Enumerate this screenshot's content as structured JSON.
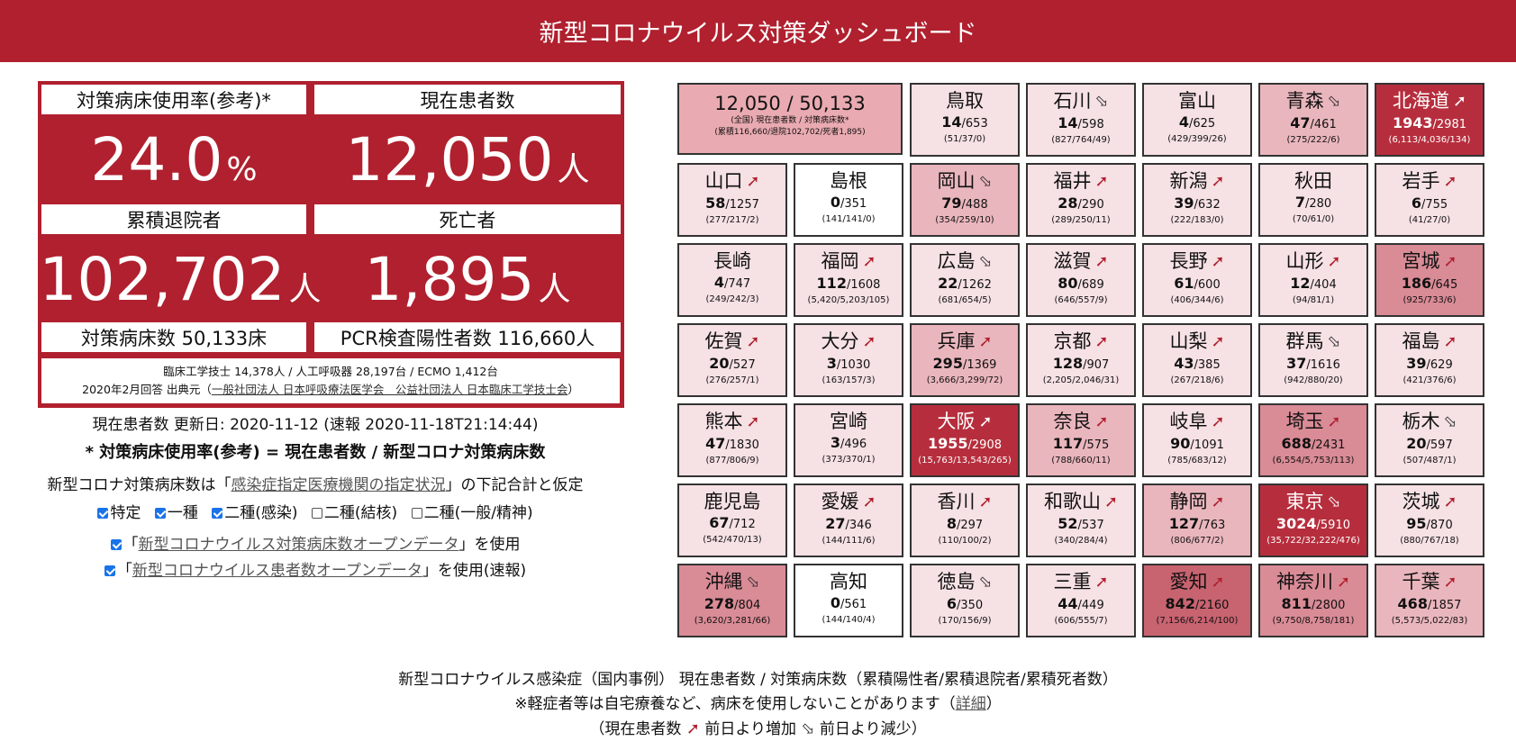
{
  "header": {
    "title": "新型コロナウイルス対策ダッシュボード"
  },
  "stats": {
    "bed_rate_label": "対策病床使用率(参考)*",
    "bed_rate_value": "24.0",
    "bed_rate_unit": "%",
    "current_label": "現在患者数",
    "current_value": "12,050",
    "current_unit": "人",
    "discharged_label": "累積退院者",
    "discharged_value": "102,702",
    "discharged_unit": "人",
    "deaths_label": "死亡者",
    "deaths_value": "1,895",
    "deaths_unit": "人",
    "beds_label": "対策病床数 50,133床",
    "pcr_label": "PCR検査陽性者数 116,660人",
    "equipment_line": "臨床工学技士 14,378人 / 人工呼吸器 28,197台 / ECMO 1,412台",
    "source_prefix": "2020年2月回答 出典元（",
    "source_link": "一般社団法人 日本呼吸療法医学会　公益社団法人 日本臨床工学技士会",
    "source_suffix": "）"
  },
  "below": {
    "updated": "現在患者数 更新日: 2020-11-12 (速報 2020-11-18T21:14:44)",
    "formula": "* 対策病床使用率(参考) = 現在患者数 / 新型コロナ対策病床数",
    "note_prefix": "新型コロナ対策病床数は「",
    "note_link": "感染症指定医療機関の指定状況",
    "note_suffix": "」の下記合計と仮定",
    "options": [
      {
        "label": "特定",
        "checked": true
      },
      {
        "label": "一種",
        "checked": true
      },
      {
        "label": "二種(感染)",
        "checked": true
      },
      {
        "label": "二種(結核)",
        "checked": false
      },
      {
        "label": "二種(一般/精神)",
        "checked": false
      }
    ],
    "use1_prefix": "「",
    "use1_link": "新型コロナウイルス対策病床数オープンデータ",
    "use1_suffix": "」を使用",
    "use2_prefix": "「",
    "use2_link": "新型コロナウイルス患者数オープンデータ",
    "use2_suffix": "」を使用(速報)"
  },
  "summary": {
    "value": "12,050 / 50,133",
    "line1": "(全国) 現在患者数 / 対策病床数*",
    "line2": "(累積116,660/退院102,702/死者1,895)"
  },
  "colors": {
    "brand": "#b0202e",
    "up_arrow": "#b0202e"
  },
  "prefectures": [
    {
      "name": "鳥取",
      "current": "14",
      "beds": "653",
      "detail": "(51/37/0)",
      "trend": "",
      "level": 1
    },
    {
      "name": "石川",
      "current": "14",
      "beds": "598",
      "detail": "(827/764/49)",
      "trend": "down",
      "level": 1
    },
    {
      "name": "富山",
      "current": "4",
      "beds": "625",
      "detail": "(429/399/26)",
      "trend": "",
      "level": 1
    },
    {
      "name": "青森",
      "current": "47",
      "beds": "461",
      "detail": "(275/222/6)",
      "trend": "down",
      "level": 2
    },
    {
      "name": "北海道",
      "current": "1943",
      "beds": "2981",
      "detail": "(6,113/4,036/134)",
      "trend": "up",
      "level": 5
    },
    {
      "name": "山口",
      "current": "58",
      "beds": "1257",
      "detail": "(277/217/2)",
      "trend": "up",
      "level": 1
    },
    {
      "name": "島根",
      "current": "0",
      "beds": "351",
      "detail": "(141/141/0)",
      "trend": "",
      "level": 0
    },
    {
      "name": "岡山",
      "current": "79",
      "beds": "488",
      "detail": "(354/259/10)",
      "trend": "down",
      "level": 2
    },
    {
      "name": "福井",
      "current": "28",
      "beds": "290",
      "detail": "(289/250/11)",
      "trend": "up",
      "level": 1
    },
    {
      "name": "新潟",
      "current": "39",
      "beds": "632",
      "detail": "(222/183/0)",
      "trend": "up",
      "level": 1
    },
    {
      "name": "秋田",
      "current": "7",
      "beds": "280",
      "detail": "(70/61/0)",
      "trend": "",
      "level": 1
    },
    {
      "name": "岩手",
      "current": "6",
      "beds": "755",
      "detail": "(41/27/0)",
      "trend": "up",
      "level": 1
    },
    {
      "name": "長崎",
      "current": "4",
      "beds": "747",
      "detail": "(249/242/3)",
      "trend": "",
      "level": 1
    },
    {
      "name": "福岡",
      "current": "112",
      "beds": "1608",
      "detail": "(5,420/5,203/105)",
      "trend": "up",
      "level": 1
    },
    {
      "name": "広島",
      "current": "22",
      "beds": "1262",
      "detail": "(681/654/5)",
      "trend": "down",
      "level": 1
    },
    {
      "name": "滋賀",
      "current": "80",
      "beds": "689",
      "detail": "(646/557/9)",
      "trend": "up",
      "level": 1
    },
    {
      "name": "長野",
      "current": "61",
      "beds": "600",
      "detail": "(406/344/6)",
      "trend": "up",
      "level": 1
    },
    {
      "name": "山形",
      "current": "12",
      "beds": "404",
      "detail": "(94/81/1)",
      "trend": "up",
      "level": 1
    },
    {
      "name": "宮城",
      "current": "186",
      "beds": "645",
      "detail": "(925/733/6)",
      "trend": "up",
      "level": 3
    },
    {
      "name": "佐賀",
      "current": "20",
      "beds": "527",
      "detail": "(276/257/1)",
      "trend": "up",
      "level": 1
    },
    {
      "name": "大分",
      "current": "3",
      "beds": "1030",
      "detail": "(163/157/3)",
      "trend": "up",
      "level": 1
    },
    {
      "name": "兵庫",
      "current": "295",
      "beds": "1369",
      "detail": "(3,666/3,299/72)",
      "trend": "up",
      "level": 2
    },
    {
      "name": "京都",
      "current": "128",
      "beds": "907",
      "detail": "(2,205/2,046/31)",
      "trend": "up",
      "level": 1
    },
    {
      "name": "山梨",
      "current": "43",
      "beds": "385",
      "detail": "(267/218/6)",
      "trend": "up",
      "level": 1
    },
    {
      "name": "群馬",
      "current": "37",
      "beds": "1616",
      "detail": "(942/880/20)",
      "trend": "down",
      "level": 1
    },
    {
      "name": "福島",
      "current": "39",
      "beds": "629",
      "detail": "(421/376/6)",
      "trend": "up",
      "level": 1
    },
    {
      "name": "熊本",
      "current": "47",
      "beds": "1830",
      "detail": "(877/806/9)",
      "trend": "up",
      "level": 1
    },
    {
      "name": "宮崎",
      "current": "3",
      "beds": "496",
      "detail": "(373/370/1)",
      "trend": "",
      "level": 1
    },
    {
      "name": "大阪",
      "current": "1955",
      "beds": "2908",
      "detail": "(15,763/13,543/265)",
      "trend": "up",
      "level": 5
    },
    {
      "name": "奈良",
      "current": "117",
      "beds": "575",
      "detail": "(788/660/11)",
      "trend": "up",
      "level": 2
    },
    {
      "name": "岐阜",
      "current": "90",
      "beds": "1091",
      "detail": "(785/683/12)",
      "trend": "up",
      "level": 1
    },
    {
      "name": "埼玉",
      "current": "688",
      "beds": "2431",
      "detail": "(6,554/5,753/113)",
      "trend": "up",
      "level": 3
    },
    {
      "name": "栃木",
      "current": "20",
      "beds": "597",
      "detail": "(507/487/1)",
      "trend": "down",
      "level": 1
    },
    {
      "name": "鹿児島",
      "current": "67",
      "beds": "712",
      "detail": "(542/470/13)",
      "trend": "",
      "level": 1
    },
    {
      "name": "愛媛",
      "current": "27",
      "beds": "346",
      "detail": "(144/111/6)",
      "trend": "up",
      "level": 1
    },
    {
      "name": "香川",
      "current": "8",
      "beds": "297",
      "detail": "(110/100/2)",
      "trend": "up",
      "level": 1
    },
    {
      "name": "和歌山",
      "current": "52",
      "beds": "537",
      "detail": "(340/284/4)",
      "trend": "up",
      "level": 1
    },
    {
      "name": "静岡",
      "current": "127",
      "beds": "763",
      "detail": "(806/677/2)",
      "trend": "up",
      "level": 2
    },
    {
      "name": "東京",
      "current": "3024",
      "beds": "5910",
      "detail": "(35,722/32,222/476)",
      "trend": "down",
      "level": 5
    },
    {
      "name": "茨城",
      "current": "95",
      "beds": "870",
      "detail": "(880/767/18)",
      "trend": "up",
      "level": 1
    },
    {
      "name": "沖縄",
      "current": "278",
      "beds": "804",
      "detail": "(3,620/3,281/66)",
      "trend": "down",
      "level": 3
    },
    {
      "name": "高知",
      "current": "0",
      "beds": "561",
      "detail": "(144/140/4)",
      "trend": "",
      "level": 0
    },
    {
      "name": "徳島",
      "current": "6",
      "beds": "350",
      "detail": "(170/156/9)",
      "trend": "down",
      "level": 1
    },
    {
      "name": "三重",
      "current": "44",
      "beds": "449",
      "detail": "(606/555/7)",
      "trend": "up",
      "level": 1
    },
    {
      "name": "愛知",
      "current": "842",
      "beds": "2160",
      "detail": "(7,156/6,214/100)",
      "trend": "up",
      "level": 4
    },
    {
      "name": "神奈川",
      "current": "811",
      "beds": "2800",
      "detail": "(9,750/8,758/181)",
      "trend": "up",
      "level": 3
    },
    {
      "name": "千葉",
      "current": "468",
      "beds": "1857",
      "detail": "(5,573/5,022/83)",
      "trend": "up",
      "level": 2
    }
  ],
  "footer": {
    "line1": "新型コロナウイルス感染症（国内事例） 現在患者数 / 対策病床数（累積陽性者/累積退院者/累積死者数）",
    "line2_prefix": "※軽症者等は自宅療養など、病床を使用しないことがあります（",
    "line2_link": "詳細",
    "line2_suffix": "）",
    "line3_prefix": "（現在患者数 ",
    "line3_up": "前日より増加",
    "line3_down": "前日より減少）"
  }
}
